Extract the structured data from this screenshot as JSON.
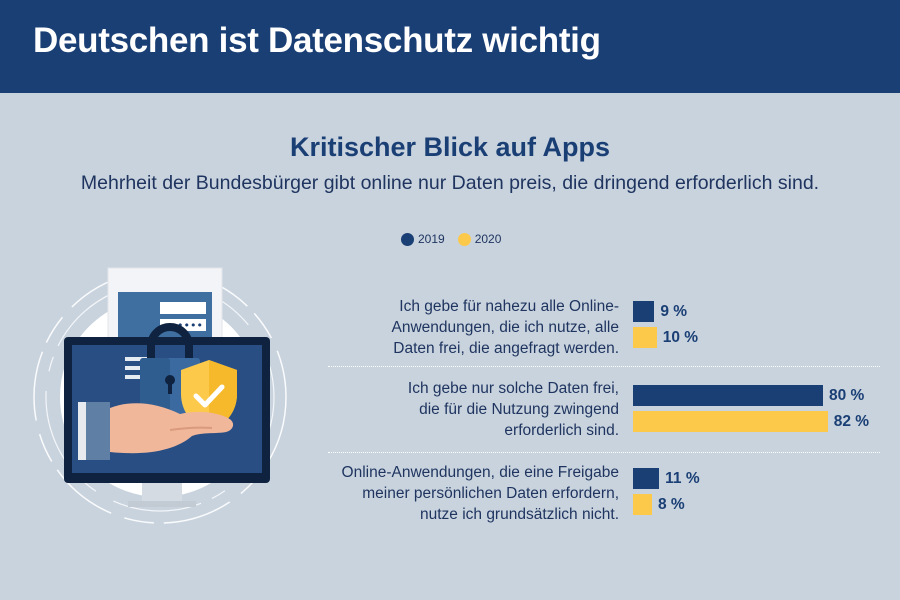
{
  "header": {
    "title": "Deutschen ist Datenschutz wichtig"
  },
  "chart_data": {
    "type": "bar",
    "orientation": "horizontal",
    "title": "Kritischer Blick auf Apps",
    "subtitle": "Mehrheit der Bundesbürger gibt online nur Daten preis, die dringend erforderlich sind.",
    "categories": [
      "Ich gebe für nahezu alle Online-Anwendungen, die ich nutze, alle Daten frei, die angefragt werden.",
      "Ich gebe nur solche Daten frei, die für die Nutzung zwingend erforderlich sind.",
      "Online-Anwendungen, die eine Freigabe meiner persönlichen Daten erfordern, nutze ich grundsätzlich nicht."
    ],
    "category_lines": [
      [
        "Ich gebe für nahezu alle Online-",
        "Anwendungen, die ich nutze, alle",
        "Daten frei, die angefragt werden."
      ],
      [
        "Ich gebe nur solche Daten frei,",
        "die für die Nutzung zwingend",
        "erforderlich sind."
      ],
      [
        "Online-Anwendungen, die eine Freigabe",
        "meiner persönlichen Daten erfordern,",
        "nutze ich grundsätzlich nicht."
      ]
    ],
    "series": [
      {
        "name": "2019",
        "values": [
          9,
          80,
          11
        ],
        "labels": [
          "9 %",
          "80 %",
          "11 %"
        ]
      },
      {
        "name": "2020",
        "values": [
          10,
          82,
          8
        ],
        "labels": [
          "10 %",
          "82 %",
          "8 %"
        ]
      }
    ],
    "xlim": [
      0,
      100
    ],
    "legend": "top-center",
    "grid": false
  },
  "colors": {
    "header_bg": "#1a3f75",
    "background": "#c9d3de",
    "series_2019": "#1a3f75",
    "series_2020": "#fdc94a"
  },
  "illustration": {
    "description_icons": [
      "laptop-icon",
      "lock-icon",
      "shield-check-icon",
      "hand-icon",
      "password-field-icon"
    ],
    "password_mask": "••••••"
  }
}
